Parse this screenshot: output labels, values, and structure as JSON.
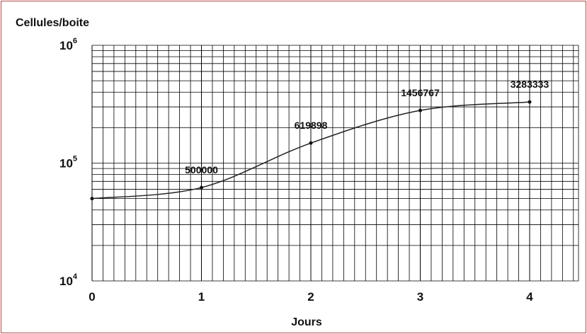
{
  "chart_data": {
    "type": "line",
    "ylabel": "Cellules/boite",
    "xlabel": "Jours",
    "y_scale": "log",
    "ylim": [
      10000,
      1000000
    ],
    "xlim": [
      0,
      4.5
    ],
    "x_ticks": [
      "0",
      "1",
      "2",
      "3",
      "4"
    ],
    "y_ticks": [
      {
        "base": "10",
        "exp": "4",
        "value": 10000
      },
      {
        "base": "10",
        "exp": "5",
        "value": 100000
      },
      {
        "base": "10",
        "exp": "6",
        "value": 1000000
      }
    ],
    "grid": true,
    "series": [
      {
        "x": [
          0,
          1,
          2,
          3,
          4
        ],
        "y": [
          50000,
          62000,
          148000,
          280000,
          330000
        ],
        "labels": [
          "",
          "500000",
          "619898",
          "1456767",
          "3283333"
        ]
      }
    ]
  }
}
